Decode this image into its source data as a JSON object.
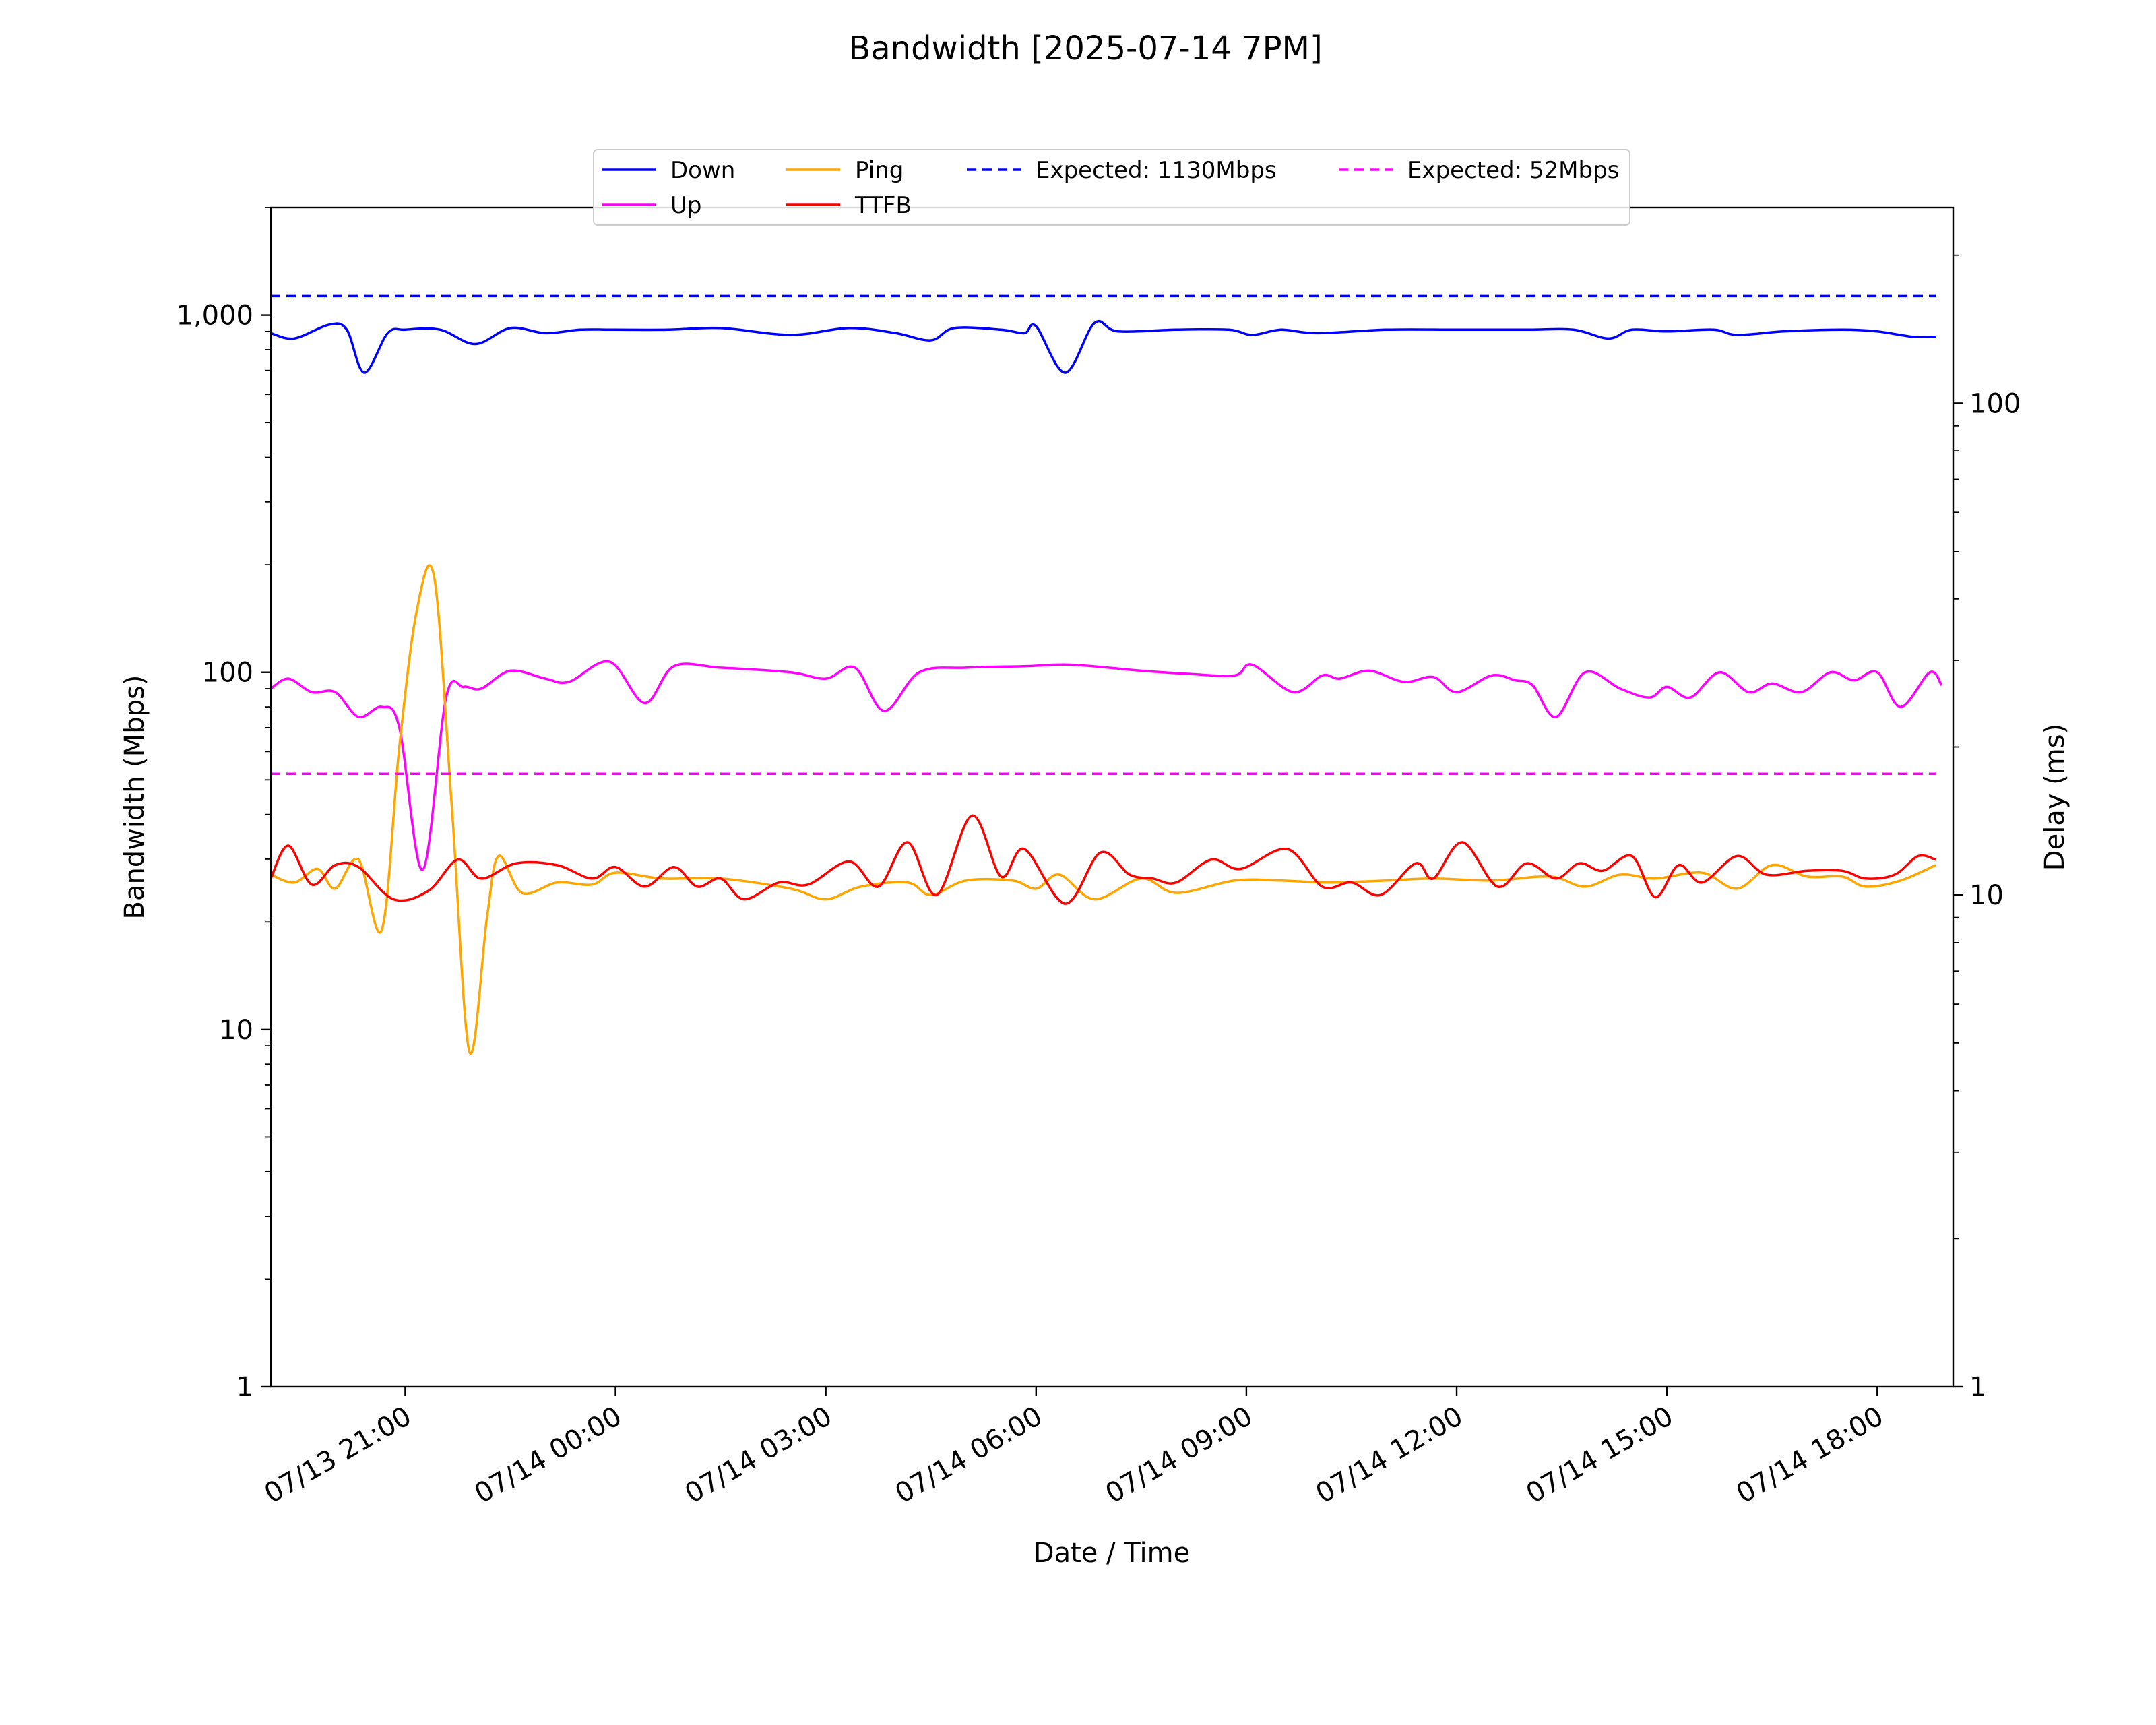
{
  "chart_data": {
    "type": "line",
    "title": "Bandwidth [2025-07-14 7PM]",
    "xlabel": "Date / Time",
    "ylabel": "Bandwidth (Mbps)",
    "y2label": "Delay (ms)",
    "y_scale": "log",
    "y2_scale": "log",
    "ylim": [
      1,
      2000
    ],
    "y2lim": [
      1,
      250
    ],
    "xlim": [
      "2025-07-13 19:05",
      "2025-07-14 19:05"
    ],
    "yticks": [
      {
        "value": 1,
        "label": "1"
      },
      {
        "value": 10,
        "label": "10"
      },
      {
        "value": 100,
        "label": "100"
      },
      {
        "value": 1000,
        "label": "1,000"
      }
    ],
    "y2ticks": [
      {
        "value": 1,
        "label": "1"
      },
      {
        "value": 10,
        "label": "10"
      },
      {
        "value": 100,
        "label": "100"
      }
    ],
    "xticks": [
      {
        "value": "2025-07-13 21:00",
        "label": "07/13 21:00"
      },
      {
        "value": "2025-07-14 00:00",
        "label": "07/14 00:00"
      },
      {
        "value": "2025-07-14 03:00",
        "label": "07/14 03:00"
      },
      {
        "value": "2025-07-14 06:00",
        "label": "07/14 06:00"
      },
      {
        "value": "2025-07-14 09:00",
        "label": "07/14 09:00"
      },
      {
        "value": "2025-07-14 12:00",
        "label": "07/14 12:00"
      },
      {
        "value": "2025-07-14 15:00",
        "label": "07/14 15:00"
      },
      {
        "value": "2025-07-14 18:00",
        "label": "07/14 18:00"
      }
    ],
    "grid": false,
    "legend_position": "top-center",
    "series": [
      {
        "name": "Down",
        "axis": "left",
        "color": "#0000ff",
        "style": "solid",
        "points": [
          [
            "2025-07-13 19:05",
            890
          ],
          [
            "2025-07-13 19:25",
            860
          ],
          [
            "2025-07-13 19:55",
            940
          ],
          [
            "2025-07-13 20:10",
            910
          ],
          [
            "2025-07-13 20:25",
            690
          ],
          [
            "2025-07-13 20:45",
            890
          ],
          [
            "2025-07-13 21:00",
            910
          ],
          [
            "2025-07-13 21:30",
            910
          ],
          [
            "2025-07-13 22:00",
            830
          ],
          [
            "2025-07-13 22:30",
            920
          ],
          [
            "2025-07-13 23:00",
            890
          ],
          [
            "2025-07-13 23:30",
            910
          ],
          [
            "2025-07-14 00:00",
            910
          ],
          [
            "2025-07-14 00:45",
            910
          ],
          [
            "2025-07-14 01:30",
            920
          ],
          [
            "2025-07-14 02:30",
            880
          ],
          [
            "2025-07-14 03:20",
            920
          ],
          [
            "2025-07-14 04:00",
            890
          ],
          [
            "2025-07-14 04:30",
            850
          ],
          [
            "2025-07-14 04:50",
            920
          ],
          [
            "2025-07-14 05:30",
            910
          ],
          [
            "2025-07-14 05:50",
            890
          ],
          [
            "2025-07-14 06:00",
            930
          ],
          [
            "2025-07-14 06:25",
            690
          ],
          [
            "2025-07-14 06:50",
            950
          ],
          [
            "2025-07-14 07:10",
            900
          ],
          [
            "2025-07-14 08:00",
            910
          ],
          [
            "2025-07-14 08:45",
            910
          ],
          [
            "2025-07-14 09:05",
            880
          ],
          [
            "2025-07-14 09:30",
            910
          ],
          [
            "2025-07-14 10:00",
            890
          ],
          [
            "2025-07-14 11:00",
            910
          ],
          [
            "2025-07-14 12:00",
            910
          ],
          [
            "2025-07-14 13:00",
            910
          ],
          [
            "2025-07-14 13:40",
            910
          ],
          [
            "2025-07-14 14:10",
            860
          ],
          [
            "2025-07-14 14:30",
            910
          ],
          [
            "2025-07-14 15:00",
            900
          ],
          [
            "2025-07-14 15:40",
            910
          ],
          [
            "2025-07-14 16:00",
            880
          ],
          [
            "2025-07-14 16:40",
            900
          ],
          [
            "2025-07-14 17:30",
            910
          ],
          [
            "2025-07-14 18:00",
            900
          ],
          [
            "2025-07-14 18:30",
            870
          ],
          [
            "2025-07-14 18:50",
            870
          ]
        ]
      },
      {
        "name": "Up",
        "axis": "left",
        "color": "#ff00ff",
        "style": "solid",
        "points": [
          [
            "2025-07-13 19:05",
            90
          ],
          [
            "2025-07-13 19:20",
            96
          ],
          [
            "2025-07-13 19:40",
            88
          ],
          [
            "2025-07-13 20:00",
            88
          ],
          [
            "2025-07-13 20:20",
            75
          ],
          [
            "2025-07-13 20:40",
            80
          ],
          [
            "2025-07-13 20:55",
            70
          ],
          [
            "2025-07-13 21:15",
            28
          ],
          [
            "2025-07-13 21:35",
            85
          ],
          [
            "2025-07-13 21:50",
            91
          ],
          [
            "2025-07-13 22:05",
            90
          ],
          [
            "2025-07-13 22:30",
            101
          ],
          [
            "2025-07-13 23:00",
            96
          ],
          [
            "2025-07-13 23:20",
            94
          ],
          [
            "2025-07-13 23:55",
            107
          ],
          [
            "2025-07-14 00:25",
            82
          ],
          [
            "2025-07-14 00:50",
            104
          ],
          [
            "2025-07-14 01:30",
            103
          ],
          [
            "2025-07-14 02:30",
            100
          ],
          [
            "2025-07-14 03:00",
            96
          ],
          [
            "2025-07-14 03:25",
            103
          ],
          [
            "2025-07-14 03:50",
            78
          ],
          [
            "2025-07-14 04:20",
            100
          ],
          [
            "2025-07-14 05:00",
            103
          ],
          [
            "2025-07-14 05:50",
            104
          ],
          [
            "2025-07-14 06:30",
            105
          ],
          [
            "2025-07-14 07:30",
            101
          ],
          [
            "2025-07-14 08:10",
            99
          ],
          [
            "2025-07-14 08:50",
            98
          ],
          [
            "2025-07-14 09:05",
            105
          ],
          [
            "2025-07-14 09:40",
            88
          ],
          [
            "2025-07-14 10:05",
            98
          ],
          [
            "2025-07-14 10:20",
            96
          ],
          [
            "2025-07-14 10:45",
            101
          ],
          [
            "2025-07-14 11:15",
            94
          ],
          [
            "2025-07-14 11:40",
            97
          ],
          [
            "2025-07-14 12:00",
            88
          ],
          [
            "2025-07-14 12:30",
            98
          ],
          [
            "2025-07-14 12:50",
            95
          ],
          [
            "2025-07-14 13:05",
            92
          ],
          [
            "2025-07-14 13:25",
            75
          ],
          [
            "2025-07-14 13:50",
            100
          ],
          [
            "2025-07-14 14:20",
            90
          ],
          [
            "2025-07-14 14:45",
            85
          ],
          [
            "2025-07-14 15:00",
            91
          ],
          [
            "2025-07-14 15:20",
            85
          ],
          [
            "2025-07-14 15:45",
            100
          ],
          [
            "2025-07-14 16:10",
            88
          ],
          [
            "2025-07-14 16:30",
            93
          ],
          [
            "2025-07-14 16:55",
            88
          ],
          [
            "2025-07-14 17:20",
            100
          ],
          [
            "2025-07-14 17:40",
            95
          ],
          [
            "2025-07-14 18:00",
            100
          ],
          [
            "2025-07-14 18:20",
            80
          ],
          [
            "2025-07-14 18:45",
            100
          ],
          [
            "2025-07-14 18:55",
            92
          ]
        ]
      },
      {
        "name": "Ping",
        "axis": "right",
        "color": "#ffa500",
        "style": "solid",
        "points": [
          [
            "2025-07-13 19:05",
            11
          ],
          [
            "2025-07-13 19:25",
            10.6
          ],
          [
            "2025-07-13 19:45",
            11.3
          ],
          [
            "2025-07-13 20:00",
            10.3
          ],
          [
            "2025-07-13 20:20",
            11.8
          ],
          [
            "2025-07-13 20:40",
            8.5
          ],
          [
            "2025-07-13 20:55",
            20
          ],
          [
            "2025-07-13 21:10",
            38
          ],
          [
            "2025-07-13 21:25",
            44
          ],
          [
            "2025-07-13 21:40",
            15
          ],
          [
            "2025-07-13 21:55",
            4.8
          ],
          [
            "2025-07-13 22:10",
            9
          ],
          [
            "2025-07-13 22:20",
            12
          ],
          [
            "2025-07-13 22:40",
            10.1
          ],
          [
            "2025-07-13 23:10",
            10.6
          ],
          [
            "2025-07-13 23:40",
            10.5
          ],
          [
            "2025-07-14 00:00",
            11.1
          ],
          [
            "2025-07-14 00:40",
            10.8
          ],
          [
            "2025-07-14 01:30",
            10.8
          ],
          [
            "2025-07-14 02:30",
            10.3
          ],
          [
            "2025-07-14 03:00",
            9.8
          ],
          [
            "2025-07-14 03:30",
            10.4
          ],
          [
            "2025-07-14 04:10",
            10.6
          ],
          [
            "2025-07-14 04:30",
            10
          ],
          [
            "2025-07-14 05:00",
            10.7
          ],
          [
            "2025-07-14 05:40",
            10.7
          ],
          [
            "2025-07-14 06:00",
            10.3
          ],
          [
            "2025-07-14 06:20",
            11
          ],
          [
            "2025-07-14 06:50",
            9.8
          ],
          [
            "2025-07-14 07:30",
            10.8
          ],
          [
            "2025-07-14 08:00",
            10.1
          ],
          [
            "2025-07-14 08:50",
            10.7
          ],
          [
            "2025-07-14 09:30",
            10.7
          ],
          [
            "2025-07-14 10:10",
            10.6
          ],
          [
            "2025-07-14 11:00",
            10.7
          ],
          [
            "2025-07-14 11:40",
            10.8
          ],
          [
            "2025-07-14 12:30",
            10.7
          ],
          [
            "2025-07-14 13:20",
            10.9
          ],
          [
            "2025-07-14 13:50",
            10.4
          ],
          [
            "2025-07-14 14:20",
            11
          ],
          [
            "2025-07-14 14:50",
            10.8
          ],
          [
            "2025-07-14 15:30",
            11.1
          ],
          [
            "2025-07-14 16:00",
            10.3
          ],
          [
            "2025-07-14 16:30",
            11.5
          ],
          [
            "2025-07-14 17:00",
            10.9
          ],
          [
            "2025-07-14 17:30",
            10.9
          ],
          [
            "2025-07-14 17:50",
            10.4
          ],
          [
            "2025-07-14 18:20",
            10.7
          ],
          [
            "2025-07-14 18:50",
            11.5
          ]
        ]
      },
      {
        "name": "TTFB",
        "axis": "right",
        "color": "#ff0000",
        "style": "solid",
        "points": [
          [
            "2025-07-13 19:05",
            10.8
          ],
          [
            "2025-07-13 19:20",
            12.6
          ],
          [
            "2025-07-13 19:40",
            10.5
          ],
          [
            "2025-07-13 20:00",
            11.5
          ],
          [
            "2025-07-13 20:20",
            11.4
          ],
          [
            "2025-07-13 20:50",
            9.8
          ],
          [
            "2025-07-13 21:20",
            10.2
          ],
          [
            "2025-07-13 21:45",
            11.8
          ],
          [
            "2025-07-13 22:05",
            10.8
          ],
          [
            "2025-07-13 22:35",
            11.6
          ],
          [
            "2025-07-13 23:10",
            11.5
          ],
          [
            "2025-07-13 23:40",
            10.8
          ],
          [
            "2025-07-14 00:00",
            11.4
          ],
          [
            "2025-07-14 00:25",
            10.4
          ],
          [
            "2025-07-14 00:50",
            11.4
          ],
          [
            "2025-07-14 01:10",
            10.4
          ],
          [
            "2025-07-14 01:30",
            10.8
          ],
          [
            "2025-07-14 01:50",
            9.8
          ],
          [
            "2025-07-14 02:20",
            10.6
          ],
          [
            "2025-07-14 02:45",
            10.5
          ],
          [
            "2025-07-14 03:20",
            11.7
          ],
          [
            "2025-07-14 03:45",
            10.4
          ],
          [
            "2025-07-14 04:10",
            12.8
          ],
          [
            "2025-07-14 04:35",
            10
          ],
          [
            "2025-07-14 05:05",
            14.5
          ],
          [
            "2025-07-14 05:30",
            10.9
          ],
          [
            "2025-07-14 05:50",
            12.4
          ],
          [
            "2025-07-14 06:25",
            9.6
          ],
          [
            "2025-07-14 06:55",
            12.2
          ],
          [
            "2025-07-14 07:20",
            11
          ],
          [
            "2025-07-14 07:40",
            10.8
          ],
          [
            "2025-07-14 08:00",
            10.6
          ],
          [
            "2025-07-14 08:30",
            11.8
          ],
          [
            "2025-07-14 08:55",
            11.3
          ],
          [
            "2025-07-14 09:35",
            12.4
          ],
          [
            "2025-07-14 10:05",
            10.4
          ],
          [
            "2025-07-14 10:30",
            10.6
          ],
          [
            "2025-07-14 10:55",
            10
          ],
          [
            "2025-07-14 11:25",
            11.6
          ],
          [
            "2025-07-14 11:40",
            10.8
          ],
          [
            "2025-07-14 12:05",
            12.8
          ],
          [
            "2025-07-14 12:35",
            10.4
          ],
          [
            "2025-07-14 13:00",
            11.6
          ],
          [
            "2025-07-14 13:25",
            10.8
          ],
          [
            "2025-07-14 13:45",
            11.6
          ],
          [
            "2025-07-14 14:05",
            11.2
          ],
          [
            "2025-07-14 14:30",
            12
          ],
          [
            "2025-07-14 14:50",
            9.9
          ],
          [
            "2025-07-14 15:10",
            11.5
          ],
          [
            "2025-07-14 15:30",
            10.6
          ],
          [
            "2025-07-14 16:00",
            12
          ],
          [
            "2025-07-14 16:25",
            11
          ],
          [
            "2025-07-14 17:00",
            11.2
          ],
          [
            "2025-07-14 17:30",
            11.2
          ],
          [
            "2025-07-14 17:50",
            10.8
          ],
          [
            "2025-07-14 18:15",
            11
          ],
          [
            "2025-07-14 18:35",
            12
          ],
          [
            "2025-07-14 18:50",
            11.8
          ]
        ]
      },
      {
        "name": "Expected: 1130Mbps",
        "axis": "left",
        "color": "#0000ff",
        "style": "dashed",
        "points": [
          [
            "2025-07-13 19:05",
            1130
          ],
          [
            "2025-07-14 18:50",
            1130
          ]
        ]
      },
      {
        "name": "Expected: 52Mbps",
        "axis": "left",
        "color": "#ff00ff",
        "style": "dashed",
        "points": [
          [
            "2025-07-13 19:05",
            52
          ],
          [
            "2025-07-14 18:50",
            52
          ]
        ]
      }
    ],
    "legend_order": [
      "Down",
      "Up",
      "Ping",
      "TTFB",
      "Expected: 1130Mbps",
      "Expected: 52Mbps"
    ]
  }
}
